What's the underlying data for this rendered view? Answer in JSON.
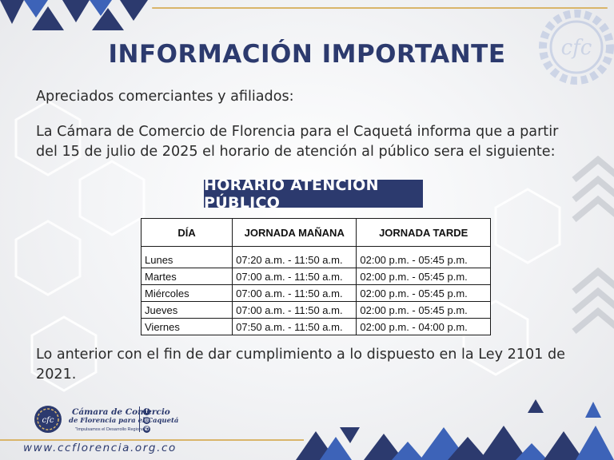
{
  "notice": {
    "title": "INFORMACIÓN IMPORTANTE",
    "greeting": "Apreciados comerciantes y afiliados:",
    "intro": "La Cámara de Comercio de Florencia para el Caquetá informa que a partir del 15 de julio de 2025 el horario de atención al público sera el siguiente:",
    "banner": "HORARIO ATENCIÓN PÚBLICO",
    "closing": "Lo anterior con el fin de dar cumplimiento a lo dispuesto en la Ley 2101 de 2021."
  },
  "schedule": {
    "headers": [
      "DÍA",
      "JORNADA MAÑANA",
      "JORNADA TARDE"
    ],
    "rows": [
      {
        "day": "Lunes",
        "morning": "07:20 a.m. - 11:50 a.m.",
        "afternoon": "02:00 p.m. - 05:45 p.m."
      },
      {
        "day": "Martes",
        "morning": "07:00 a.m. - 11:50 a.m.",
        "afternoon": "02:00 p.m. - 05:45 p.m."
      },
      {
        "day": "Miércoles",
        "morning": "07:00 a.m. - 11:50 a.m.",
        "afternoon": "02:00 p.m. - 05:45 p.m."
      },
      {
        "day": "Jueves",
        "morning": "07:00 a.m. - 11:50 a.m.",
        "afternoon": "02:00 p.m. - 05:45 p.m."
      },
      {
        "day": "Viernes",
        "morning": "07:50 a.m. - 11:50 a.m.",
        "afternoon": "02:00 p.m. - 04:00 p.m."
      }
    ]
  },
  "footer": {
    "org_name_line1": "Cámara de Comercio",
    "org_name_line2": "de Florencia para el Caquetá",
    "org_tagline": "\"Impulsamos el Desarrollo Regional\"",
    "logo_text": "cfc",
    "social_icons": [
      "facebook-icon",
      "instagram-icon",
      "whatsapp-icon"
    ],
    "url": "www.ccflorencia.org.co"
  },
  "colors": {
    "brand_navy": "#2c3a6e",
    "accent_blue": "#3d63b8",
    "gold": "#d9b56a",
    "text": "#2b2b2b"
  }
}
